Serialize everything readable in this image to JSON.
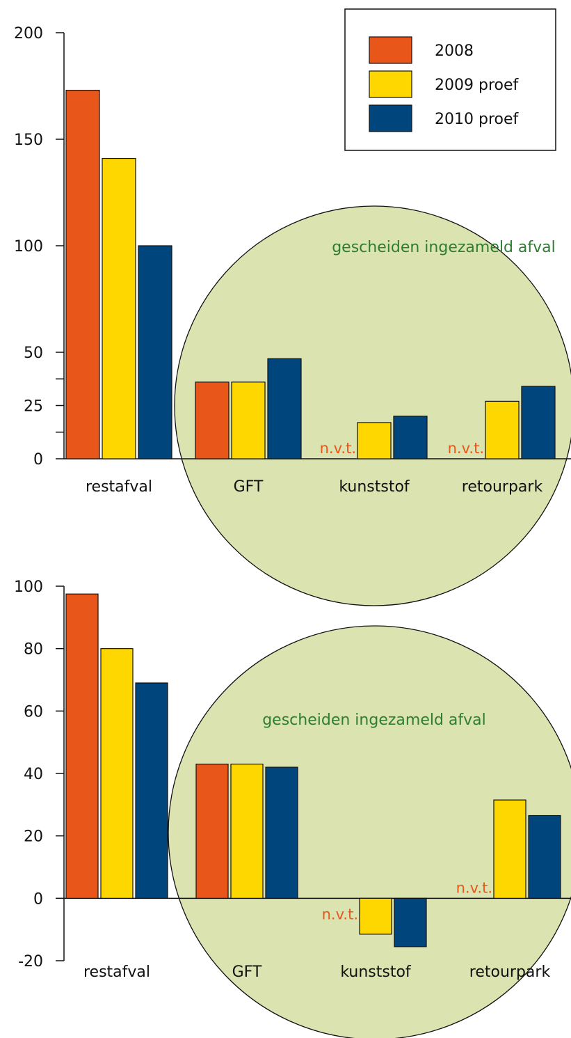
{
  "colors": {
    "series_2008": "#E8561A",
    "series_2009": "#FFD700",
    "series_2010": "#00457C",
    "circle_fill": "#DBE4B1",
    "annotation": "#2E7D32",
    "nvt": "#E8561A"
  },
  "legend": {
    "entries": [
      "2008",
      "2009 proef",
      "2010 proef"
    ]
  },
  "chart_data": [
    {
      "type": "bar",
      "categories": [
        "restafval",
        "GFT",
        "kunststof",
        "retourpark"
      ],
      "ylim": [
        0,
        200
      ],
      "yticks": [
        "0",
        "25",
        "50",
        "100",
        "150",
        "200"
      ],
      "annotation": "gescheiden ingezameld afval",
      "na_label": "n.v.t.",
      "legend_position": "top-right",
      "series": [
        {
          "name": "2008",
          "values": [
            173,
            36,
            null,
            null
          ]
        },
        {
          "name": "2009 proef",
          "values": [
            141,
            36,
            17,
            27
          ]
        },
        {
          "name": "2010 proef",
          "values": [
            100,
            47,
            20,
            34
          ]
        }
      ]
    },
    {
      "type": "bar",
      "categories": [
        "restafval",
        "GFT",
        "kunststof",
        "retourpark"
      ],
      "ylim": [
        -20,
        100
      ],
      "yticks": [
        "-20",
        "0",
        "20",
        "40",
        "60",
        "80",
        "100"
      ],
      "annotation": "gescheiden ingezameld afval",
      "na_label": "n.v.t.",
      "series": [
        {
          "name": "2008",
          "values": [
            97.5,
            43,
            null,
            null
          ]
        },
        {
          "name": "2009 proef",
          "values": [
            80,
            43,
            -11.5,
            31.5
          ]
        },
        {
          "name": "2010 proef",
          "values": [
            69,
            42,
            -15.5,
            26.5
          ]
        }
      ]
    }
  ]
}
